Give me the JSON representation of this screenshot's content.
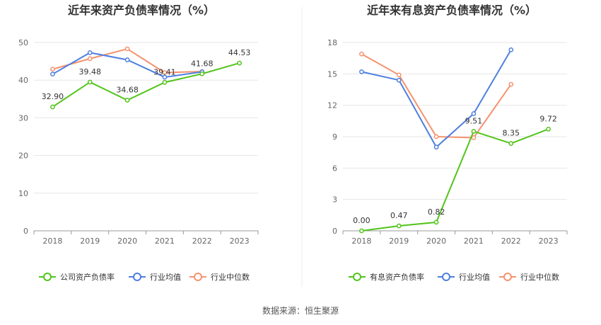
{
  "source_note": "数据来源：恒生聚源",
  "chart_data": [
    {
      "type": "line",
      "title": "近年来资产负债率情况（%）",
      "categories": [
        "2018",
        "2019",
        "2020",
        "2021",
        "2022",
        "2023"
      ],
      "ylim": [
        0,
        50
      ],
      "yticks": [
        0,
        10,
        20,
        30,
        40,
        50
      ],
      "grid": true,
      "legend_position": "bottom",
      "series": [
        {
          "name": "公司资产负债率",
          "color": "#52c41a",
          "values": [
            32.9,
            39.48,
            34.68,
            39.41,
            41.68,
            44.53
          ],
          "labels": [
            "32.90",
            "39.48",
            "34.68",
            "39.41",
            "41.68",
            "44.53"
          ]
        },
        {
          "name": "行业均值",
          "color": "#4e7fe0",
          "values": [
            41.6,
            47.3,
            45.4,
            40.8,
            42.2,
            null
          ]
        },
        {
          "name": "行业中位数",
          "color": "#f5926e",
          "values": [
            42.9,
            45.7,
            48.3,
            42.0,
            42.3,
            null
          ]
        }
      ]
    },
    {
      "type": "line",
      "title": "近年来有息资产负债率情况（%）",
      "categories": [
        "2018",
        "2019",
        "2020",
        "2021",
        "2022",
        "2023"
      ],
      "ylim": [
        0,
        18
      ],
      "yticks": [
        0,
        3,
        6,
        9,
        12,
        15,
        18
      ],
      "grid": true,
      "legend_position": "bottom",
      "series": [
        {
          "name": "有息资产负债率",
          "color": "#52c41a",
          "values": [
            0.0,
            0.47,
            0.82,
            9.51,
            8.35,
            9.72
          ],
          "labels": [
            "0.00",
            "0.47",
            "0.82",
            "9.51",
            "8.35",
            "9.72"
          ]
        },
        {
          "name": "行业均值",
          "color": "#4e7fe0",
          "values": [
            15.2,
            14.4,
            8.0,
            11.2,
            17.3,
            null
          ]
        },
        {
          "name": "行业中位数",
          "color": "#f5926e",
          "values": [
            16.9,
            14.9,
            9.0,
            8.9,
            14.0,
            null
          ]
        }
      ]
    }
  ]
}
